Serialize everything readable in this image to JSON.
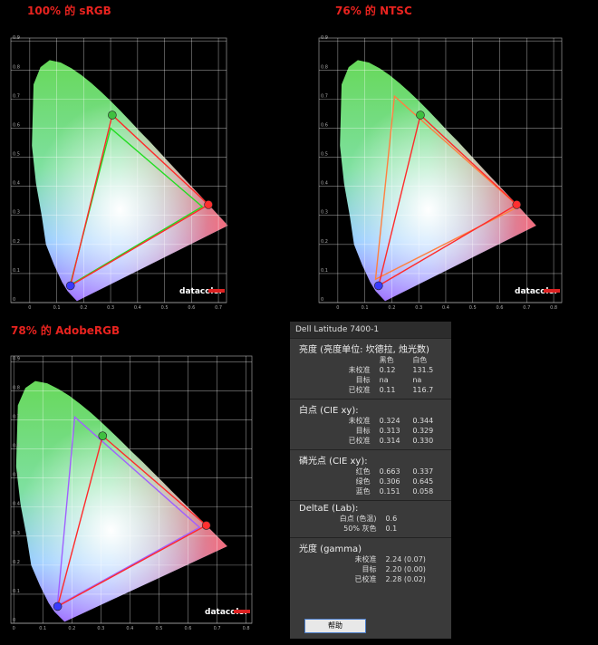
{
  "chart_data": [
    {
      "type": "gamut",
      "title": "100% 的 sRGB",
      "logo": "datacolor",
      "xlim": [
        -0.07,
        0.73
      ],
      "ylim": [
        0,
        0.91
      ],
      "xticks": [
        0,
        0.1,
        0.2,
        0.3,
        0.4,
        0.5,
        0.6,
        0.7
      ],
      "yticks": [
        0,
        0.1,
        0.2,
        0.3,
        0.4,
        0.5,
        0.6,
        0.7,
        0.8,
        0.9
      ],
      "grid": true,
      "series": [
        {
          "color": "#22dd22",
          "x": [
            0.64,
            0.3,
            0.15
          ],
          "values": [
            0.33,
            0.6,
            0.06
          ]
        },
        {
          "color": "#ff2a2a",
          "x": [
            0.663,
            0.306,
            0.151
          ],
          "values": [
            0.337,
            0.645,
            0.058
          ],
          "point_colors": [
            "#ff3030",
            "#3fbf3f",
            "#3a3aff"
          ]
        }
      ]
    },
    {
      "type": "gamut",
      "title": "76% 的 NTSC",
      "logo": "datacolor",
      "xlim": [
        -0.07,
        0.83
      ],
      "ylim": [
        0,
        0.91
      ],
      "xticks": [
        0,
        0.1,
        0.2,
        0.3,
        0.4,
        0.5,
        0.6,
        0.7,
        0.8
      ],
      "yticks": [
        0,
        0.1,
        0.2,
        0.3,
        0.4,
        0.5,
        0.6,
        0.7,
        0.8,
        0.9
      ],
      "grid": true,
      "series": [
        {
          "color": "#ff8040",
          "x": [
            0.67,
            0.21,
            0.14
          ],
          "values": [
            0.33,
            0.71,
            0.08
          ]
        },
        {
          "color": "#ff2a2a",
          "x": [
            0.663,
            0.306,
            0.151
          ],
          "values": [
            0.337,
            0.645,
            0.058
          ],
          "point_colors": [
            "#ff3030",
            "#3fbf3f",
            "#3a3aff"
          ]
        }
      ]
    },
    {
      "type": "gamut",
      "title": "78% 的 AdobeRGB",
      "logo": "datacolor",
      "xlim": [
        -0.01,
        0.82
      ],
      "ylim": [
        0,
        0.92
      ],
      "xticks": [
        0,
        0.1,
        0.2,
        0.3,
        0.4,
        0.5,
        0.6,
        0.7,
        0.8
      ],
      "yticks": [
        0,
        0.1,
        0.2,
        0.3,
        0.4,
        0.5,
        0.6,
        0.7,
        0.8,
        0.9
      ],
      "grid": true,
      "series": [
        {
          "color": "#a060ff",
          "x": [
            0.64,
            0.21,
            0.15
          ],
          "values": [
            0.33,
            0.71,
            0.06
          ]
        },
        {
          "color": "#ff2a2a",
          "x": [
            0.663,
            0.306,
            0.151
          ],
          "values": [
            0.337,
            0.645,
            0.058
          ],
          "point_colors": [
            "#ff3030",
            "#3fbf3f",
            "#3a3aff"
          ]
        }
      ]
    }
  ],
  "panel": {
    "title": "Dell Latitude 7400-1",
    "sections": [
      {
        "heading": "亮度 (亮度单位: 坎德拉, 烛光数)",
        "columns": [
          "黑色",
          "白色"
        ],
        "rows": [
          [
            "未校准",
            "0.12",
            "131.5"
          ],
          [
            "目标",
            "na",
            "na"
          ],
          [
            "已校准",
            "0.11",
            "116.7"
          ]
        ]
      },
      {
        "heading": "白点 (CIE xy):",
        "rows": [
          [
            "未校准",
            "0.324",
            "0.344"
          ],
          [
            "目标",
            "0.313",
            "0.329"
          ],
          [
            "已校准",
            "0.314",
            "0.330"
          ]
        ]
      },
      {
        "heading": "磷光点 (CIE xy):",
        "rows": [
          [
            "红色",
            "0.663",
            "0.337"
          ],
          [
            "绿色",
            "0.306",
            "0.645"
          ],
          [
            "蓝色",
            "0.151",
            "0.058"
          ]
        ]
      },
      {
        "heading": "DeltaE (Lab):",
        "rows": [
          [
            "白点 (色温)",
            "0.6"
          ],
          [
            "50% 灰色",
            "0.1"
          ]
        ]
      },
      {
        "heading": "光度 (gamma)",
        "rows": [
          [
            "未校准",
            "2.24 (0.07)"
          ],
          [
            "目标",
            "2.20 (0.00)"
          ],
          [
            "已校准",
            "2.28 (0.02)"
          ]
        ]
      }
    ],
    "button": "帮助"
  }
}
